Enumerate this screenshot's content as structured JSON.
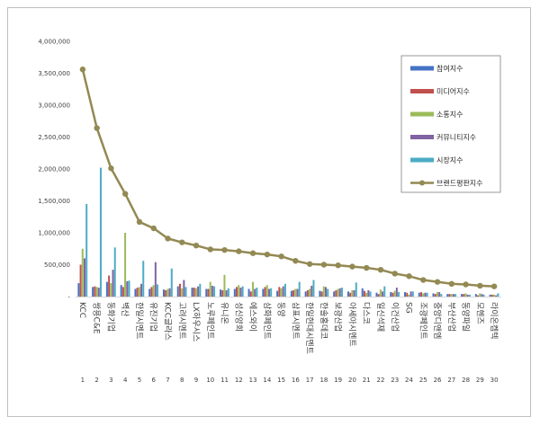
{
  "chart_data": {
    "type": "bar",
    "title": "",
    "xlabel": "",
    "ylabel": "",
    "ylim": [
      0,
      4000000
    ],
    "yticks": [
      "4,000,000",
      "3,500,000",
      "3,000,000",
      "2,500,000",
      "2,000,000",
      "1,500,000",
      "1,000,000",
      "500,000",
      "-"
    ],
    "ytick_values": [
      4000000,
      3500000,
      3000000,
      2500000,
      2000000,
      1500000,
      1000000,
      500000,
      0
    ],
    "categories": [
      "KCC",
      "쌍용C&E",
      "동화기업",
      "벽산",
      "한일시멘트",
      "유진기업",
      "KCC글라스",
      "고려시멘트",
      "LX하우시스",
      "노루페인트",
      "유니온",
      "성신양회",
      "에스와이",
      "삼화페인트",
      "동양",
      "삼표시멘트",
      "한일현대시멘트",
      "한솔홈데코",
      "보광산업",
      "아세아시멘트",
      "다스코",
      "일신석재",
      "이건산업",
      "SG",
      "조광페인트",
      "중앙디앤엠",
      "부산산업",
      "동양파일",
      "모헨즈",
      "라이온켐텍"
    ],
    "numbers": [
      "1",
      "2",
      "3",
      "4",
      "5",
      "6",
      "7",
      "8",
      "9",
      "10",
      "11",
      "12",
      "13",
      "14",
      "15",
      "16",
      "17",
      "18",
      "19",
      "20",
      "21",
      "22",
      "23",
      "24",
      "25",
      "26",
      "27",
      "28",
      "29",
      "30"
    ],
    "series": [
      {
        "name": "참여지수",
        "color": "#4472c4",
        "values": [
          210000,
          150000,
          230000,
          180000,
          120000,
          120000,
          110000,
          160000,
          140000,
          120000,
          110000,
          120000,
          120000,
          120000,
          90000,
          90000,
          80000,
          90000,
          80000,
          80000,
          130000,
          60000,
          70000,
          70000,
          60000,
          50000,
          40000,
          40000,
          40000,
          30000
        ]
      },
      {
        "name": "미디어지수",
        "color": "#c0504d",
        "values": [
          500000,
          160000,
          330000,
          150000,
          140000,
          150000,
          100000,
          200000,
          140000,
          120000,
          100000,
          150000,
          80000,
          150000,
          150000,
          100000,
          100000,
          80000,
          100000,
          60000,
          90000,
          40000,
          60000,
          60000,
          70000,
          40000,
          40000,
          40000,
          20000,
          30000
        ]
      },
      {
        "name": "소통지수",
        "color": "#9bbb59",
        "values": [
          750000,
          150000,
          210000,
          1000000,
          150000,
          180000,
          120000,
          130000,
          130000,
          230000,
          340000,
          180000,
          230000,
          180000,
          130000,
          120000,
          120000,
          160000,
          120000,
          100000,
          60000,
          110000,
          90000,
          30000,
          50000,
          70000,
          40000,
          50000,
          50000,
          30000
        ]
      },
      {
        "name": "커뮤니티지수",
        "color": "#8064a2",
        "values": [
          600000,
          140000,
          420000,
          240000,
          200000,
          540000,
          130000,
          260000,
          160000,
          170000,
          100000,
          140000,
          120000,
          120000,
          160000,
          120000,
          170000,
          150000,
          130000,
          100000,
          100000,
          80000,
          140000,
          80000,
          60000,
          70000,
          40000,
          30000,
          40000,
          20000
        ]
      },
      {
        "name": "시장지수",
        "color": "#4bacc6",
        "values": [
          1450000,
          2020000,
          770000,
          250000,
          560000,
          190000,
          440000,
          150000,
          200000,
          160000,
          130000,
          160000,
          140000,
          130000,
          200000,
          230000,
          260000,
          120000,
          140000,
          220000,
          80000,
          160000,
          70000,
          80000,
          60000,
          40000,
          40000,
          30000,
          30000,
          50000
        ]
      },
      {
        "name": "브랜드평판지수",
        "color": "#938953",
        "type": "line",
        "values": [
          3560000,
          2640000,
          2010000,
          1610000,
          1170000,
          1070000,
          910000,
          850000,
          800000,
          740000,
          730000,
          710000,
          680000,
          660000,
          630000,
          560000,
          510000,
          500000,
          490000,
          470000,
          450000,
          420000,
          360000,
          320000,
          260000,
          230000,
          200000,
          190000,
          170000,
          160000
        ]
      }
    ],
    "legend_position": "top-right",
    "grid": false
  }
}
